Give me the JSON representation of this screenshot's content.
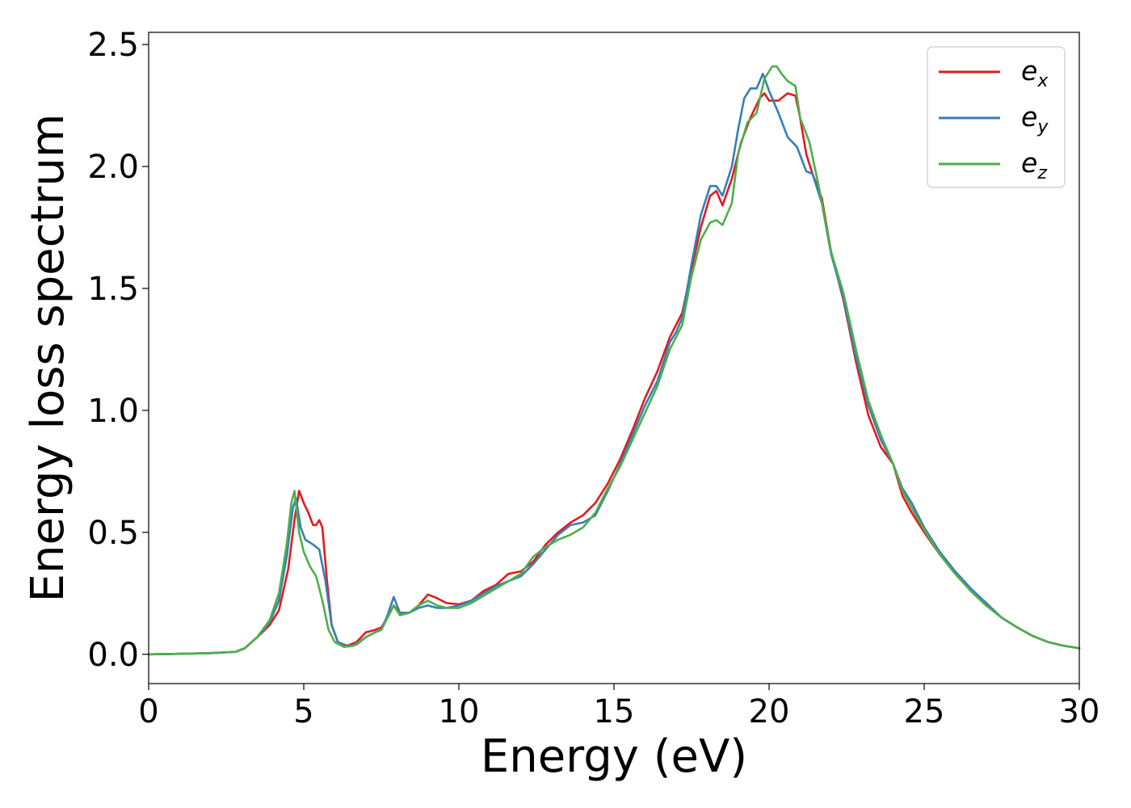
{
  "chart_data": {
    "type": "line",
    "xlabel": "Energy (eV)",
    "ylabel": "Energy loss spectrum",
    "xlim": [
      0,
      30
    ],
    "ylim": [
      -0.12,
      2.55
    ],
    "x_ticks": [
      "0",
      "5",
      "10",
      "15",
      "20",
      "25",
      "30"
    ],
    "y_ticks": [
      "0.0",
      "0.5",
      "1.0",
      "1.5",
      "2.0",
      "2.5"
    ],
    "grid": false,
    "legend_position": "top-right",
    "series": [
      {
        "name": "e_x",
        "label_main": "e",
        "label_sub": "x",
        "color": "#e41a1c",
        "points": [
          [
            0,
            0.0
          ],
          [
            1,
            0.002
          ],
          [
            2,
            0.005
          ],
          [
            2.8,
            0.01
          ],
          [
            3.1,
            0.025
          ],
          [
            3.5,
            0.07
          ],
          [
            3.9,
            0.12
          ],
          [
            4.2,
            0.18
          ],
          [
            4.5,
            0.35
          ],
          [
            4.7,
            0.55
          ],
          [
            4.85,
            0.67
          ],
          [
            5.0,
            0.62
          ],
          [
            5.15,
            0.58
          ],
          [
            5.3,
            0.53
          ],
          [
            5.4,
            0.53
          ],
          [
            5.5,
            0.55
          ],
          [
            5.6,
            0.52
          ],
          [
            5.75,
            0.3
          ],
          [
            5.9,
            0.12
          ],
          [
            6.1,
            0.05
          ],
          [
            6.4,
            0.035
          ],
          [
            6.7,
            0.05
          ],
          [
            7.0,
            0.09
          ],
          [
            7.3,
            0.1
          ],
          [
            7.5,
            0.11
          ],
          [
            7.7,
            0.15
          ],
          [
            7.9,
            0.2
          ],
          [
            8.1,
            0.17
          ],
          [
            8.4,
            0.17
          ],
          [
            8.7,
            0.2
          ],
          [
            9.0,
            0.245
          ],
          [
            9.3,
            0.23
          ],
          [
            9.6,
            0.21
          ],
          [
            10.0,
            0.205
          ],
          [
            10.4,
            0.22
          ],
          [
            10.8,
            0.26
          ],
          [
            11.2,
            0.285
          ],
          [
            11.6,
            0.33
          ],
          [
            12.0,
            0.34
          ],
          [
            12.4,
            0.38
          ],
          [
            12.8,
            0.45
          ],
          [
            13.2,
            0.5
          ],
          [
            13.6,
            0.54
          ],
          [
            14.0,
            0.57
          ],
          [
            14.4,
            0.62
          ],
          [
            14.8,
            0.7
          ],
          [
            15.2,
            0.8
          ],
          [
            15.6,
            0.92
          ],
          [
            16.0,
            1.05
          ],
          [
            16.4,
            1.16
          ],
          [
            16.8,
            1.3
          ],
          [
            17.0,
            1.35
          ],
          [
            17.2,
            1.4
          ],
          [
            17.5,
            1.58
          ],
          [
            17.8,
            1.75
          ],
          [
            18.1,
            1.88
          ],
          [
            18.3,
            1.9
          ],
          [
            18.5,
            1.84
          ],
          [
            18.8,
            1.95
          ],
          [
            19.1,
            2.1
          ],
          [
            19.4,
            2.2
          ],
          [
            19.7,
            2.28
          ],
          [
            19.85,
            2.3
          ],
          [
            20.0,
            2.27
          ],
          [
            20.3,
            2.27
          ],
          [
            20.6,
            2.3
          ],
          [
            20.85,
            2.29
          ],
          [
            21.0,
            2.2
          ],
          [
            21.2,
            2.05
          ],
          [
            21.4,
            1.97
          ],
          [
            21.7,
            1.87
          ],
          [
            22.0,
            1.65
          ],
          [
            22.4,
            1.45
          ],
          [
            22.8,
            1.2
          ],
          [
            23.2,
            0.98
          ],
          [
            23.6,
            0.85
          ],
          [
            24.0,
            0.78
          ],
          [
            24.3,
            0.65
          ],
          [
            24.6,
            0.58
          ],
          [
            25.0,
            0.5
          ],
          [
            25.5,
            0.41
          ],
          [
            26.0,
            0.33
          ],
          [
            26.5,
            0.26
          ],
          [
            27.0,
            0.2
          ],
          [
            27.5,
            0.15
          ],
          [
            28.0,
            0.11
          ],
          [
            28.5,
            0.075
          ],
          [
            29.0,
            0.05
          ],
          [
            29.5,
            0.035
          ],
          [
            30.0,
            0.025
          ]
        ]
      },
      {
        "name": "e_y",
        "label_main": "e",
        "label_sub": "y",
        "color": "#377eb8",
        "points": [
          [
            0,
            0.0
          ],
          [
            1,
            0.002
          ],
          [
            2,
            0.005
          ],
          [
            2.8,
            0.01
          ],
          [
            3.1,
            0.025
          ],
          [
            3.5,
            0.07
          ],
          [
            3.9,
            0.13
          ],
          [
            4.2,
            0.22
          ],
          [
            4.45,
            0.4
          ],
          [
            4.65,
            0.6
          ],
          [
            4.75,
            0.64
          ],
          [
            4.9,
            0.52
          ],
          [
            5.05,
            0.47
          ],
          [
            5.3,
            0.45
          ],
          [
            5.5,
            0.43
          ],
          [
            5.7,
            0.3
          ],
          [
            5.9,
            0.12
          ],
          [
            6.1,
            0.05
          ],
          [
            6.4,
            0.032
          ],
          [
            6.7,
            0.04
          ],
          [
            7.0,
            0.07
          ],
          [
            7.3,
            0.09
          ],
          [
            7.5,
            0.1
          ],
          [
            7.7,
            0.16
          ],
          [
            7.9,
            0.235
          ],
          [
            8.1,
            0.17
          ],
          [
            8.4,
            0.17
          ],
          [
            8.7,
            0.19
          ],
          [
            9.0,
            0.2
          ],
          [
            9.3,
            0.19
          ],
          [
            9.6,
            0.19
          ],
          [
            10.0,
            0.2
          ],
          [
            10.4,
            0.22
          ],
          [
            10.8,
            0.25
          ],
          [
            11.2,
            0.28
          ],
          [
            11.6,
            0.3
          ],
          [
            12.0,
            0.32
          ],
          [
            12.4,
            0.37
          ],
          [
            12.8,
            0.43
          ],
          [
            13.2,
            0.49
          ],
          [
            13.6,
            0.53
          ],
          [
            14.0,
            0.54
          ],
          [
            14.4,
            0.57
          ],
          [
            14.8,
            0.67
          ],
          [
            15.2,
            0.78
          ],
          [
            15.6,
            0.9
          ],
          [
            16.0,
            1.02
          ],
          [
            16.4,
            1.12
          ],
          [
            16.8,
            1.28
          ],
          [
            17.0,
            1.32
          ],
          [
            17.2,
            1.38
          ],
          [
            17.5,
            1.6
          ],
          [
            17.8,
            1.8
          ],
          [
            18.1,
            1.92
          ],
          [
            18.3,
            1.92
          ],
          [
            18.5,
            1.88
          ],
          [
            18.8,
            2.0
          ],
          [
            19.0,
            2.15
          ],
          [
            19.2,
            2.28
          ],
          [
            19.4,
            2.32
          ],
          [
            19.6,
            2.32
          ],
          [
            19.8,
            2.38
          ],
          [
            20.0,
            2.31
          ],
          [
            20.3,
            2.22
          ],
          [
            20.6,
            2.12
          ],
          [
            20.9,
            2.08
          ],
          [
            21.2,
            1.98
          ],
          [
            21.4,
            1.97
          ],
          [
            21.7,
            1.85
          ],
          [
            22.0,
            1.64
          ],
          [
            22.4,
            1.46
          ],
          [
            22.8,
            1.22
          ],
          [
            23.2,
            1.02
          ],
          [
            23.6,
            0.88
          ],
          [
            24.0,
            0.78
          ],
          [
            24.3,
            0.68
          ],
          [
            24.6,
            0.62
          ],
          [
            25.0,
            0.52
          ],
          [
            25.5,
            0.42
          ],
          [
            26.0,
            0.34
          ],
          [
            26.5,
            0.27
          ],
          [
            27.0,
            0.21
          ],
          [
            27.5,
            0.15
          ],
          [
            28.0,
            0.11
          ],
          [
            28.5,
            0.075
          ],
          [
            29.0,
            0.05
          ],
          [
            29.5,
            0.035
          ],
          [
            30.0,
            0.025
          ]
        ]
      },
      {
        "name": "e_z",
        "label_main": "e",
        "label_sub": "z",
        "color": "#4daf4a",
        "points": [
          [
            0,
            0.0
          ],
          [
            1,
            0.002
          ],
          [
            2,
            0.005
          ],
          [
            2.8,
            0.01
          ],
          [
            3.1,
            0.025
          ],
          [
            3.5,
            0.07
          ],
          [
            3.9,
            0.14
          ],
          [
            4.2,
            0.25
          ],
          [
            4.45,
            0.45
          ],
          [
            4.6,
            0.62
          ],
          [
            4.7,
            0.67
          ],
          [
            4.85,
            0.5
          ],
          [
            5.0,
            0.42
          ],
          [
            5.2,
            0.36
          ],
          [
            5.4,
            0.32
          ],
          [
            5.6,
            0.22
          ],
          [
            5.8,
            0.1
          ],
          [
            6.0,
            0.05
          ],
          [
            6.3,
            0.03
          ],
          [
            6.6,
            0.035
          ],
          [
            7.0,
            0.07
          ],
          [
            7.3,
            0.09
          ],
          [
            7.5,
            0.1
          ],
          [
            7.7,
            0.15
          ],
          [
            7.9,
            0.2
          ],
          [
            8.1,
            0.16
          ],
          [
            8.4,
            0.17
          ],
          [
            8.7,
            0.2
          ],
          [
            9.0,
            0.22
          ],
          [
            9.3,
            0.2
          ],
          [
            9.6,
            0.19
          ],
          [
            10.0,
            0.19
          ],
          [
            10.4,
            0.21
          ],
          [
            10.8,
            0.24
          ],
          [
            11.2,
            0.27
          ],
          [
            11.6,
            0.3
          ],
          [
            12.0,
            0.33
          ],
          [
            12.4,
            0.4
          ],
          [
            12.8,
            0.44
          ],
          [
            13.2,
            0.47
          ],
          [
            13.6,
            0.49
          ],
          [
            14.0,
            0.52
          ],
          [
            14.4,
            0.58
          ],
          [
            14.8,
            0.68
          ],
          [
            15.2,
            0.77
          ],
          [
            15.6,
            0.88
          ],
          [
            16.0,
            0.99
          ],
          [
            16.4,
            1.1
          ],
          [
            16.8,
            1.25
          ],
          [
            17.0,
            1.3
          ],
          [
            17.2,
            1.35
          ],
          [
            17.5,
            1.55
          ],
          [
            17.8,
            1.7
          ],
          [
            18.1,
            1.77
          ],
          [
            18.3,
            1.78
          ],
          [
            18.5,
            1.76
          ],
          [
            18.8,
            1.85
          ],
          [
            19.0,
            2.05
          ],
          [
            19.3,
            2.18
          ],
          [
            19.6,
            2.22
          ],
          [
            19.85,
            2.36
          ],
          [
            20.1,
            2.41
          ],
          [
            20.25,
            2.41
          ],
          [
            20.4,
            2.38
          ],
          [
            20.6,
            2.35
          ],
          [
            20.85,
            2.33
          ],
          [
            21.0,
            2.2
          ],
          [
            21.3,
            2.1
          ],
          [
            21.6,
            1.92
          ],
          [
            22.0,
            1.65
          ],
          [
            22.4,
            1.48
          ],
          [
            22.8,
            1.25
          ],
          [
            23.2,
            1.04
          ],
          [
            23.6,
            0.9
          ],
          [
            24.0,
            0.78
          ],
          [
            24.3,
            0.67
          ],
          [
            24.6,
            0.6
          ],
          [
            25.0,
            0.51
          ],
          [
            25.5,
            0.41
          ],
          [
            26.0,
            0.33
          ],
          [
            26.5,
            0.26
          ],
          [
            27.0,
            0.2
          ],
          [
            27.5,
            0.15
          ],
          [
            28.0,
            0.11
          ],
          [
            28.5,
            0.075
          ],
          [
            29.0,
            0.05
          ],
          [
            29.5,
            0.035
          ],
          [
            30.0,
            0.025
          ]
        ]
      }
    ]
  }
}
